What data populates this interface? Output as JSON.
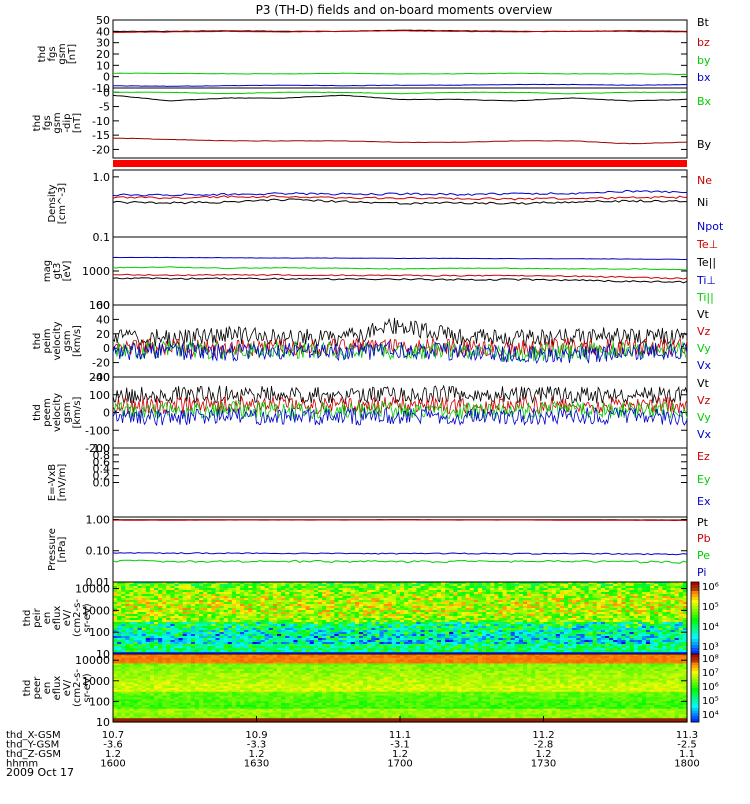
{
  "title": "P3 (TH-D) fields and on-board moments overview",
  "date": "2009 Oct 17",
  "chart_data": [
    {
      "type": "line",
      "ylabel": [
        "thd",
        "fgs",
        "gsm",
        "[nT]"
      ],
      "ylim": [
        -10,
        50
      ],
      "yticks": [
        "50",
        "40",
        "30",
        "20",
        "10",
        "0",
        "-10"
      ],
      "series": [
        {
          "name": "Bt",
          "color": "#000000",
          "values": [
            40,
            40,
            40.5,
            40,
            40,
            41,
            40.5,
            40,
            40,
            40.5,
            40
          ]
        },
        {
          "name": "bz",
          "color": "#cc0000",
          "values": [
            39,
            39.5,
            40,
            39.5,
            40,
            40.5,
            40,
            39.5,
            40,
            40,
            39.5
          ]
        },
        {
          "name": "by",
          "color": "#00cc00",
          "values": [
            3,
            3,
            2.5,
            2.5,
            3,
            2.5,
            2.5,
            3,
            2.5,
            2.5,
            2
          ]
        },
        {
          "name": "bx",
          "color": "#0000cc",
          "values": [
            -8,
            -8.5,
            -8,
            -7.5,
            -8,
            -7.5,
            -7.5,
            -7,
            -7,
            -7.5,
            -7
          ]
        }
      ]
    },
    {
      "type": "line",
      "ylabel": [
        "thd",
        "fgs",
        "gsm",
        "-dip"
      ],
      "ylabel2": "[nT]",
      "ylim": [
        -23,
        1.5
      ],
      "yticks": [
        "0",
        "-5",
        "-10",
        "-15",
        "-20"
      ],
      "series": [
        {
          "name": "Bx",
          "color": "#00cc00",
          "values": [
            0,
            0,
            -0.5,
            0,
            0,
            -0.5,
            0,
            0,
            -0.5,
            0,
            0
          ]
        },
        {
          "name": "By",
          "color": "#000000",
          "values": [
            -1,
            -3,
            -2,
            -2,
            -1,
            -2.5,
            -2.5,
            -3,
            -2,
            -3,
            -2.5
          ]
        },
        {
          "name": "Bz",
          "color": "#990000",
          "values": [
            -16,
            -16.5,
            -17,
            -17,
            -17,
            -17.5,
            -17.5,
            -17,
            -17,
            -18,
            -17.5
          ]
        }
      ]
    },
    {
      "type": "line",
      "ylabel": [
        "Density",
        "[cm^-3]"
      ],
      "ylim": [
        0.1,
        1.3
      ],
      "yticks": [
        "1.0",
        "0.1"
      ],
      "log": true,
      "series": [
        {
          "name": "Ne",
          "color": "#cc0000",
          "values": [
            0.45,
            0.45,
            0.47,
            0.47,
            0.45,
            0.44,
            0.44,
            0.43,
            0.44,
            0.45,
            0.46
          ]
        },
        {
          "name": "Ni",
          "color": "#000000",
          "values": [
            0.38,
            0.37,
            0.38,
            0.42,
            0.39,
            0.36,
            0.37,
            0.36,
            0.38,
            0.4,
            0.39
          ]
        },
        {
          "name": "Npot",
          "color": "#0000cc",
          "values": [
            0.5,
            0.5,
            0.51,
            0.53,
            0.52,
            0.52,
            0.51,
            0.52,
            0.53,
            0.58,
            0.55
          ]
        }
      ]
    },
    {
      "type": "line",
      "ylabel": [
        "mag",
        "gt3",
        "[eV]"
      ],
      "ylim": [
        100,
        10000
      ],
      "log": true,
      "yticks": [
        "1000",
        "100"
      ],
      "series": [
        {
          "name": "Te⊥",
          "color": "#cc0000",
          "values": [
            780,
            760,
            760,
            770,
            750,
            740,
            730,
            720,
            700,
            650,
            600
          ]
        },
        {
          "name": "Te||",
          "color": "#000000",
          "values": [
            620,
            600,
            600,
            590,
            580,
            570,
            560,
            560,
            540,
            500,
            470
          ]
        },
        {
          "name": "Ti⊥",
          "color": "#0000cc",
          "values": [
            2500,
            2500,
            2450,
            2400,
            2400,
            2350,
            2350,
            2300,
            2300,
            2250,
            2200
          ]
        },
        {
          "name": "Ti||",
          "color": "#00cc00",
          "values": [
            1250,
            1300,
            1200,
            1250,
            1200,
            1150,
            1200,
            1200,
            1150,
            1150,
            1100
          ]
        }
      ]
    },
    {
      "type": "line",
      "ylabel": [
        "thd",
        "peim",
        "velocity",
        "gsm",
        "[km/s]"
      ],
      "ylim": [
        -40,
        60
      ],
      "yticks": [
        "60",
        "40",
        "20",
        "0",
        "-20",
        "-40"
      ],
      "series": [
        {
          "name": "Vt",
          "color": "#000000",
          "values": [
            15,
            14,
            18,
            16,
            14,
            32,
            15,
            14,
            16,
            18,
            16
          ]
        },
        {
          "name": "Vz",
          "color": "#cc0000",
          "values": [
            2,
            1,
            0,
            2,
            1,
            4,
            1,
            0,
            2,
            1,
            2
          ]
        },
        {
          "name": "Vy",
          "color": "#00cc00",
          "values": [
            -3,
            -2,
            -4,
            -2,
            -3,
            -6,
            -3,
            -8,
            -4,
            -2,
            -3
          ]
        },
        {
          "name": "Vx",
          "color": "#0000cc",
          "values": [
            -5,
            -4,
            -6,
            -4,
            -6,
            -2,
            -5,
            -8,
            -10,
            -4,
            -5
          ]
        }
      ]
    },
    {
      "type": "line",
      "ylabel": [
        "thd",
        "peem",
        "velocity",
        "gsm",
        "[km/s]"
      ],
      "ylim": [
        -200,
        200
      ],
      "yticks": [
        "200",
        "100",
        "0",
        "-100",
        "-200"
      ],
      "series": [
        {
          "name": "Vt",
          "color": "#000000",
          "values": [
            100,
            100,
            105,
            100,
            95,
            100,
            105,
            100,
            100,
            95,
            100
          ]
        },
        {
          "name": "Vz",
          "color": "#cc0000",
          "values": [
            40,
            40,
            45,
            40,
            40,
            45,
            40,
            40,
            45,
            40,
            40
          ]
        },
        {
          "name": "Vy",
          "color": "#00cc00",
          "values": [
            10,
            10,
            15,
            10,
            10,
            15,
            10,
            10,
            15,
            10,
            10
          ]
        },
        {
          "name": "Vx",
          "color": "#0000cc",
          "values": [
            -20,
            -25,
            -20,
            -20,
            -25,
            -20,
            -20,
            -25,
            -20,
            -20,
            -25
          ]
        }
      ]
    },
    {
      "type": "line",
      "ylabel": [
        "E=-VxB",
        "[mV/m]"
      ],
      "ylim": [
        -1.0,
        1.0
      ],
      "yticks": [
        "1.0",
        "0.8",
        "0.6",
        "0.4",
        "0.2",
        "0.0"
      ],
      "series": [
        {
          "name": "Ez",
          "color": "#cc0000",
          "values": []
        },
        {
          "name": "Ey",
          "color": "#00cc00",
          "values": []
        },
        {
          "name": "Ex",
          "color": "#0000cc",
          "values": []
        }
      ]
    },
    {
      "type": "line",
      "ylabel": [
        "Pressure",
        "[nPa]"
      ],
      "ylim": [
        0.01,
        1.2
      ],
      "log": true,
      "yticks": [
        "1.00",
        "0.10",
        "0.01"
      ],
      "series": [
        {
          "name": "Pt",
          "color": "#000000",
          "values": [
            0.98,
            0.98,
            0.98,
            0.98,
            0.98,
            0.99,
            0.98,
            0.98,
            0.98,
            0.97,
            0.96
          ]
        },
        {
          "name": "Pb",
          "color": "#cc0000",
          "values": [
            0.95,
            0.95,
            0.96,
            0.96,
            0.96,
            0.97,
            0.96,
            0.96,
            0.95,
            0.94,
            0.93
          ]
        },
        {
          "name": "Pe",
          "color": "#00cc00",
          "values": [
            0.047,
            0.046,
            0.046,
            0.046,
            0.045,
            0.045,
            0.045,
            0.046,
            0.045,
            0.044,
            0.043
          ]
        },
        {
          "name": "Pi",
          "color": "#0000cc",
          "values": [
            0.085,
            0.084,
            0.083,
            0.082,
            0.082,
            0.081,
            0.081,
            0.08,
            0.08,
            0.079,
            0.078
          ]
        }
      ]
    },
    {
      "type": "heatmap",
      "ylabel": [
        "thd",
        "peir",
        "en",
        "eflux",
        "eV/",
        "(cm2-s-",
        "sr-eV)"
      ],
      "ylim": [
        10,
        20000
      ],
      "log": true,
      "yticks": [
        "10000",
        "1000",
        "100",
        "10"
      ],
      "colorbar_ticks": [
        "10⁶",
        "10⁵",
        "10⁴",
        "10³"
      ]
    },
    {
      "type": "heatmap",
      "ylabel": [
        "thd",
        "peer",
        "en",
        "eflux",
        "eV/",
        "(cm2-s-",
        "sr-eV)"
      ],
      "ylim": [
        10,
        20000
      ],
      "log": true,
      "yticks": [
        "10000",
        "1000",
        "100",
        "10"
      ],
      "colorbar_ticks": [
        "10⁸",
        "10⁷",
        "10⁶",
        "10⁵",
        "10⁴"
      ]
    }
  ],
  "xaxis": {
    "rows": [
      {
        "label": "thd_X-GSM",
        "values": [
          "10.7",
          "10.9",
          "11.1",
          "11.2",
          "11.3"
        ]
      },
      {
        "label": "thd_Y-GSM",
        "values": [
          "-3.6",
          "-3.3",
          "-3.1",
          "-2.8",
          "-2.5"
        ]
      },
      {
        "label": "thd_Z-GSM",
        "values": [
          "1.2",
          "1.2",
          "1.2",
          "1.2",
          "1.1"
        ]
      },
      {
        "label": "hhmm",
        "values": [
          "1600",
          "1630",
          "1700",
          "1730",
          "1800"
        ]
      }
    ]
  }
}
